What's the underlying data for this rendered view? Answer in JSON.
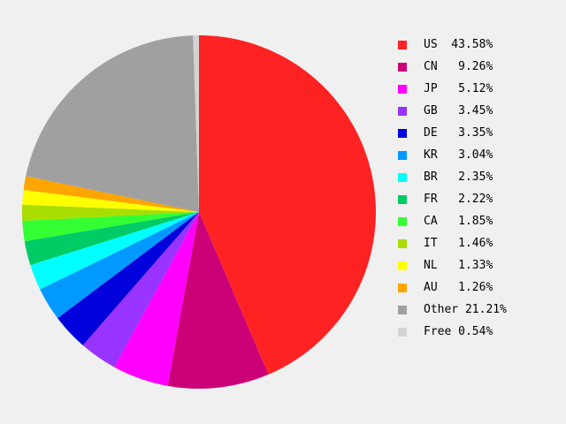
{
  "chart_data": {
    "type": "pie",
    "title": "",
    "start_angle_deg": 0,
    "direction": "clockwise",
    "slices": [
      {
        "label": "US",
        "value": 43.58,
        "display": "US  43.58%",
        "color": "#ff2222"
      },
      {
        "label": "CN",
        "value": 9.26,
        "display": "CN   9.26%",
        "color": "#cc0077"
      },
      {
        "label": "JP",
        "value": 5.12,
        "display": "JP   5.12%",
        "color": "#ff00ff"
      },
      {
        "label": "GB",
        "value": 3.45,
        "display": "GB   3.45%",
        "color": "#9933ff"
      },
      {
        "label": "DE",
        "value": 3.35,
        "display": "DE   3.35%",
        "color": "#0000dd"
      },
      {
        "label": "KR",
        "value": 3.04,
        "display": "KR   3.04%",
        "color": "#0099ff"
      },
      {
        "label": "BR",
        "value": 2.35,
        "display": "BR   2.35%",
        "color": "#00ffff"
      },
      {
        "label": "FR",
        "value": 2.22,
        "display": "FR   2.22%",
        "color": "#00cc66"
      },
      {
        "label": "CA",
        "value": 1.85,
        "display": "CA   1.85%",
        "color": "#33ff33"
      },
      {
        "label": "IT",
        "value": 1.46,
        "display": "IT   1.46%",
        "color": "#aadd00"
      },
      {
        "label": "NL",
        "value": 1.33,
        "display": "NL   1.33%",
        "color": "#ffff00"
      },
      {
        "label": "AU",
        "value": 1.26,
        "display": "AU   1.26%",
        "color": "#ffa500"
      },
      {
        "label": "Other",
        "value": 21.21,
        "display": "Other 21.21%",
        "color": "#a0a0a0"
      },
      {
        "label": "Free",
        "value": 0.54,
        "display": "Free 0.54%",
        "color": "#d3d3d3"
      }
    ]
  }
}
